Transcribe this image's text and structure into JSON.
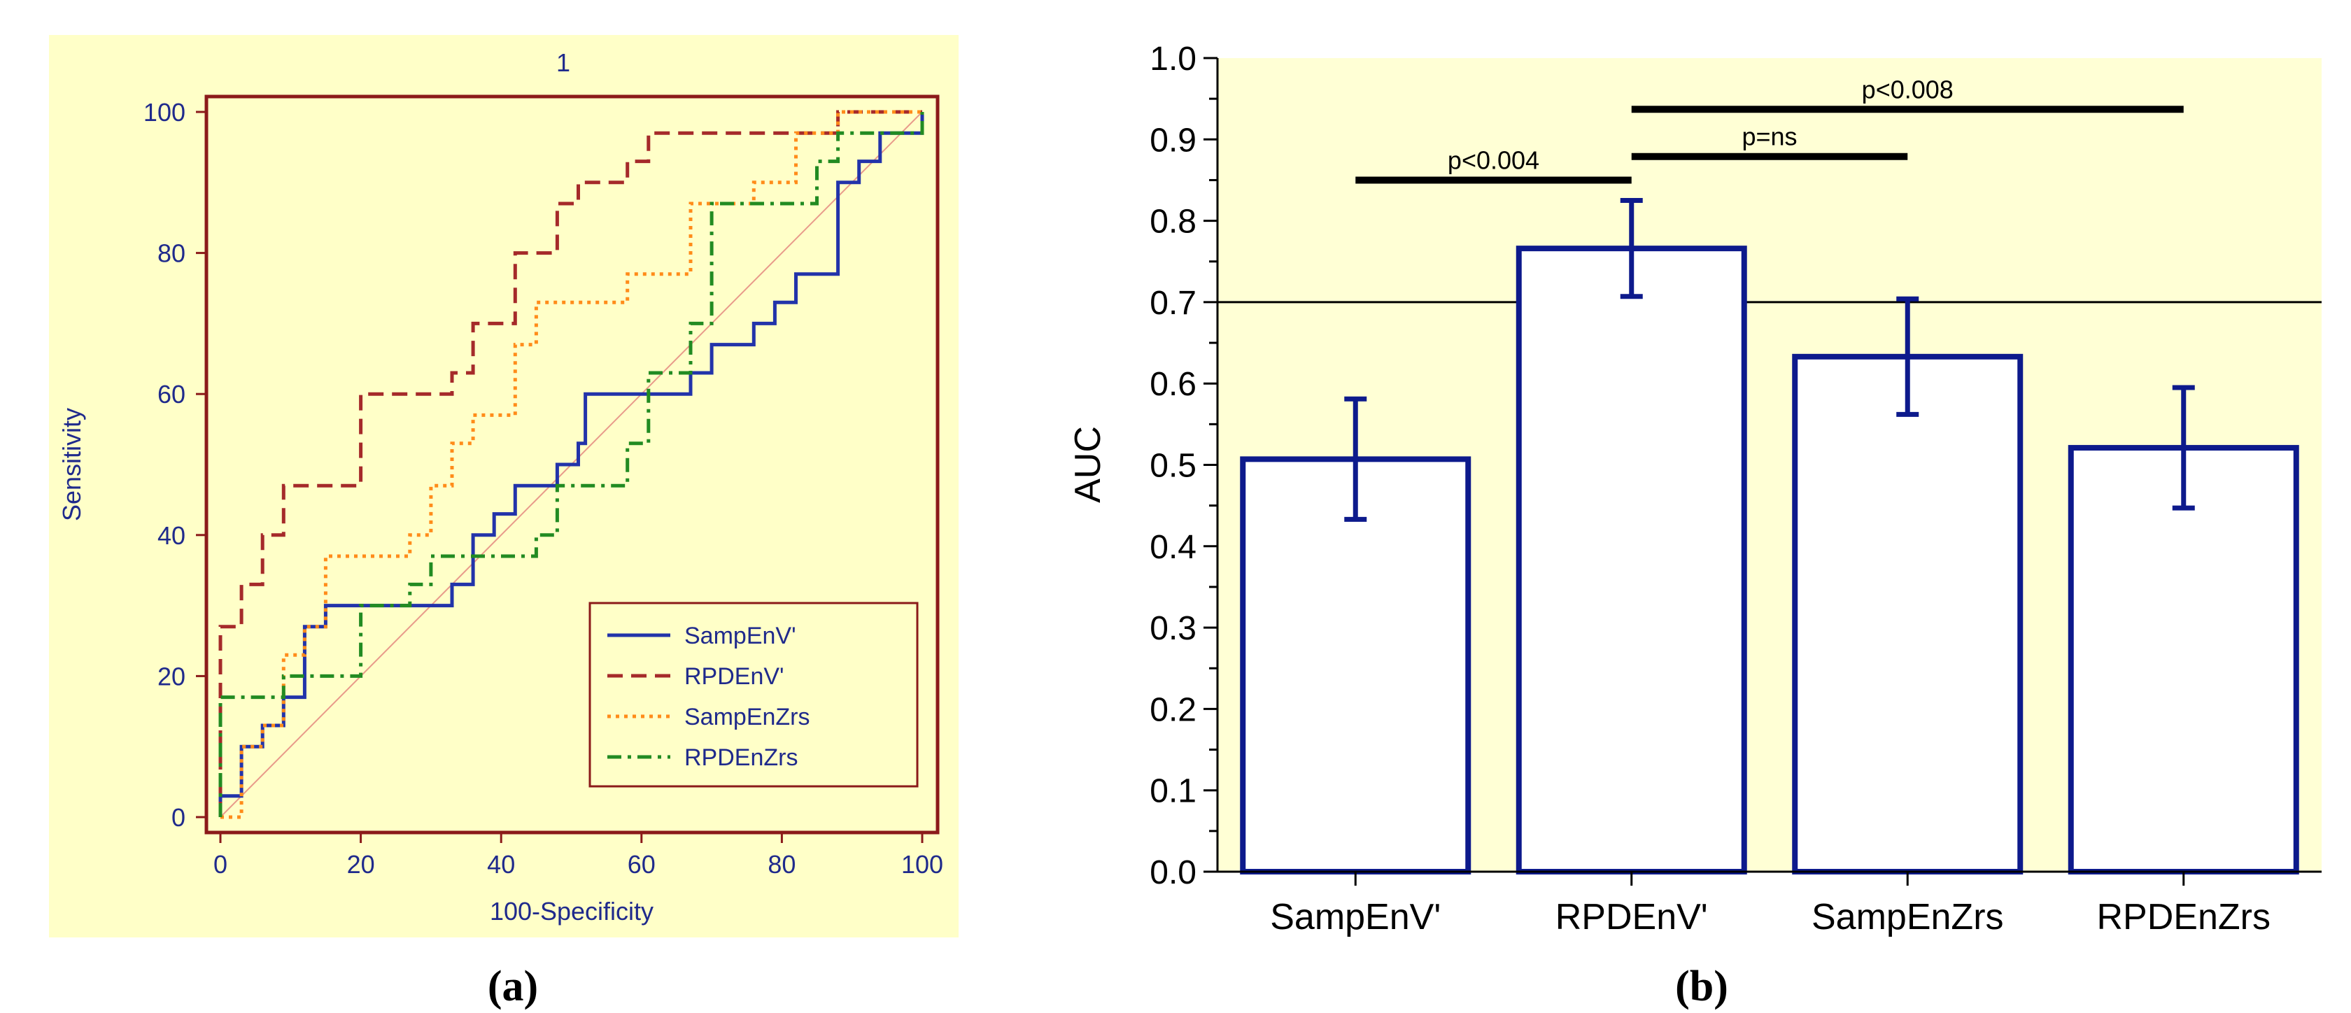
{
  "chart_data": [
    {
      "type": "line",
      "panel_label": "(a)",
      "title": "1",
      "xlabel": "100-Specificity",
      "ylabel": "Sensitivity",
      "xlim": [
        0,
        100
      ],
      "ylim": [
        0,
        100
      ],
      "xticks": [
        0,
        20,
        40,
        60,
        80,
        100
      ],
      "yticks": [
        0,
        20,
        40,
        60,
        80,
        100
      ],
      "grid": false,
      "legend_position": "bottom-right",
      "reference_line": "diagonal",
      "colors": {
        "background": "#FFFFC8",
        "axes": "#8B1A1A",
        "text": "#1F2A8C",
        "reference": "#E89A8A"
      },
      "series": [
        {
          "name": "SampEnV'",
          "color": "#2233AA",
          "style": "solid",
          "points": [
            [
              0,
              0
            ],
            [
              0,
              3
            ],
            [
              3,
              3
            ],
            [
              3,
              10
            ],
            [
              6,
              10
            ],
            [
              6,
              13
            ],
            [
              9,
              13
            ],
            [
              9,
              17
            ],
            [
              12,
              17
            ],
            [
              12,
              27
            ],
            [
              15,
              27
            ],
            [
              15,
              30
            ],
            [
              33,
              30
            ],
            [
              33,
              33
            ],
            [
              36,
              33
            ],
            [
              36,
              40
            ],
            [
              39,
              40
            ],
            [
              39,
              43
            ],
            [
              42,
              43
            ],
            [
              42,
              47
            ],
            [
              48,
              47
            ],
            [
              48,
              50
            ],
            [
              51,
              50
            ],
            [
              51,
              53
            ],
            [
              52,
              53
            ],
            [
              52,
              60
            ],
            [
              67,
              60
            ],
            [
              67,
              63
            ],
            [
              70,
              63
            ],
            [
              70,
              67
            ],
            [
              76,
              67
            ],
            [
              76,
              70
            ],
            [
              79,
              70
            ],
            [
              79,
              73
            ],
            [
              82,
              73
            ],
            [
              82,
              77
            ],
            [
              88,
              77
            ],
            [
              88,
              90
            ],
            [
              91,
              90
            ],
            [
              91,
              93
            ],
            [
              94,
              93
            ],
            [
              94,
              97
            ],
            [
              100,
              97
            ],
            [
              100,
              100
            ]
          ]
        },
        {
          "name": "RPDEnV'",
          "color": "#A52A2A",
          "style": "dashed",
          "points": [
            [
              0,
              0
            ],
            [
              0,
              27
            ],
            [
              3,
              27
            ],
            [
              3,
              33
            ],
            [
              6,
              33
            ],
            [
              6,
              40
            ],
            [
              9,
              40
            ],
            [
              9,
              47
            ],
            [
              20,
              47
            ],
            [
              20,
              60
            ],
            [
              33,
              60
            ],
            [
              33,
              63
            ],
            [
              36,
              63
            ],
            [
              36,
              70
            ],
            [
              42,
              70
            ],
            [
              42,
              80
            ],
            [
              48,
              80
            ],
            [
              48,
              87
            ],
            [
              51,
              87
            ],
            [
              51,
              90
            ],
            [
              58,
              90
            ],
            [
              58,
              93
            ],
            [
              61,
              93
            ],
            [
              61,
              97
            ],
            [
              88,
              97
            ],
            [
              88,
              100
            ],
            [
              100,
              100
            ]
          ]
        },
        {
          "name": "SampEnZrs",
          "color": "#FF8C1A",
          "style": "dotted",
          "points": [
            [
              0,
              0
            ],
            [
              3,
              0
            ],
            [
              3,
              10
            ],
            [
              6,
              10
            ],
            [
              6,
              13
            ],
            [
              9,
              13
            ],
            [
              9,
              23
            ],
            [
              12,
              23
            ],
            [
              12,
              27
            ],
            [
              15,
              27
            ],
            [
              15,
              37
            ],
            [
              27,
              37
            ],
            [
              27,
              40
            ],
            [
              30,
              40
            ],
            [
              30,
              47
            ],
            [
              33,
              47
            ],
            [
              33,
              53
            ],
            [
              36,
              53
            ],
            [
              36,
              57
            ],
            [
              42,
              57
            ],
            [
              42,
              67
            ],
            [
              45,
              67
            ],
            [
              45,
              73
            ],
            [
              58,
              73
            ],
            [
              58,
              77
            ],
            [
              67,
              77
            ],
            [
              67,
              87
            ],
            [
              76,
              87
            ],
            [
              76,
              90
            ],
            [
              82,
              90
            ],
            [
              82,
              97
            ],
            [
              88,
              97
            ],
            [
              88,
              100
            ],
            [
              100,
              100
            ]
          ]
        },
        {
          "name": "RPDEnZrs",
          "color": "#228B22",
          "style": "dashdot",
          "points": [
            [
              0,
              0
            ],
            [
              0,
              17
            ],
            [
              9,
              17
            ],
            [
              9,
              20
            ],
            [
              20,
              20
            ],
            [
              20,
              30
            ],
            [
              27,
              30
            ],
            [
              27,
              33
            ],
            [
              30,
              33
            ],
            [
              30,
              37
            ],
            [
              45,
              37
            ],
            [
              45,
              40
            ],
            [
              48,
              40
            ],
            [
              48,
              47
            ],
            [
              58,
              47
            ],
            [
              58,
              53
            ],
            [
              61,
              53
            ],
            [
              61,
              63
            ],
            [
              67,
              63
            ],
            [
              67,
              70
            ],
            [
              70,
              70
            ],
            [
              70,
              87
            ],
            [
              85,
              87
            ],
            [
              85,
              93
            ],
            [
              88,
              93
            ],
            [
              88,
              97
            ],
            [
              100,
              97
            ],
            [
              100,
              100
            ]
          ]
        }
      ]
    },
    {
      "type": "bar",
      "panel_label": "(b)",
      "title": "",
      "xlabel": "",
      "ylabel": "AUC",
      "ylim": [
        0,
        1
      ],
      "yticks": [
        "0.0",
        "0.1",
        "0.2",
        "0.3",
        "0.4",
        "0.5",
        "0.6",
        "0.7",
        "0.8",
        "0.9",
        "1.0"
      ],
      "grid": false,
      "reference_line": {
        "y": 0.7
      },
      "categories": [
        "SampEnV'",
        "RPDEnV'",
        "SampEnZrs",
        "RPDEnZrs"
      ],
      "values": [
        0.507,
        0.766,
        0.633,
        0.521
      ],
      "error": [
        0.074,
        0.059,
        0.071,
        0.074
      ],
      "colors": {
        "background": "#FFFFD5",
        "bar_edge": "#0D1A8C",
        "bar_fill": "#FFFFFF"
      },
      "annotations": [
        {
          "label": "p<0.004",
          "from": 0,
          "to": 1,
          "y": 0.85
        },
        {
          "label": "p=ns",
          "from": 1,
          "to": 2,
          "y": 0.879
        },
        {
          "label": "p<0.008",
          "from": 1,
          "to": 3,
          "y": 0.937
        }
      ]
    }
  ]
}
